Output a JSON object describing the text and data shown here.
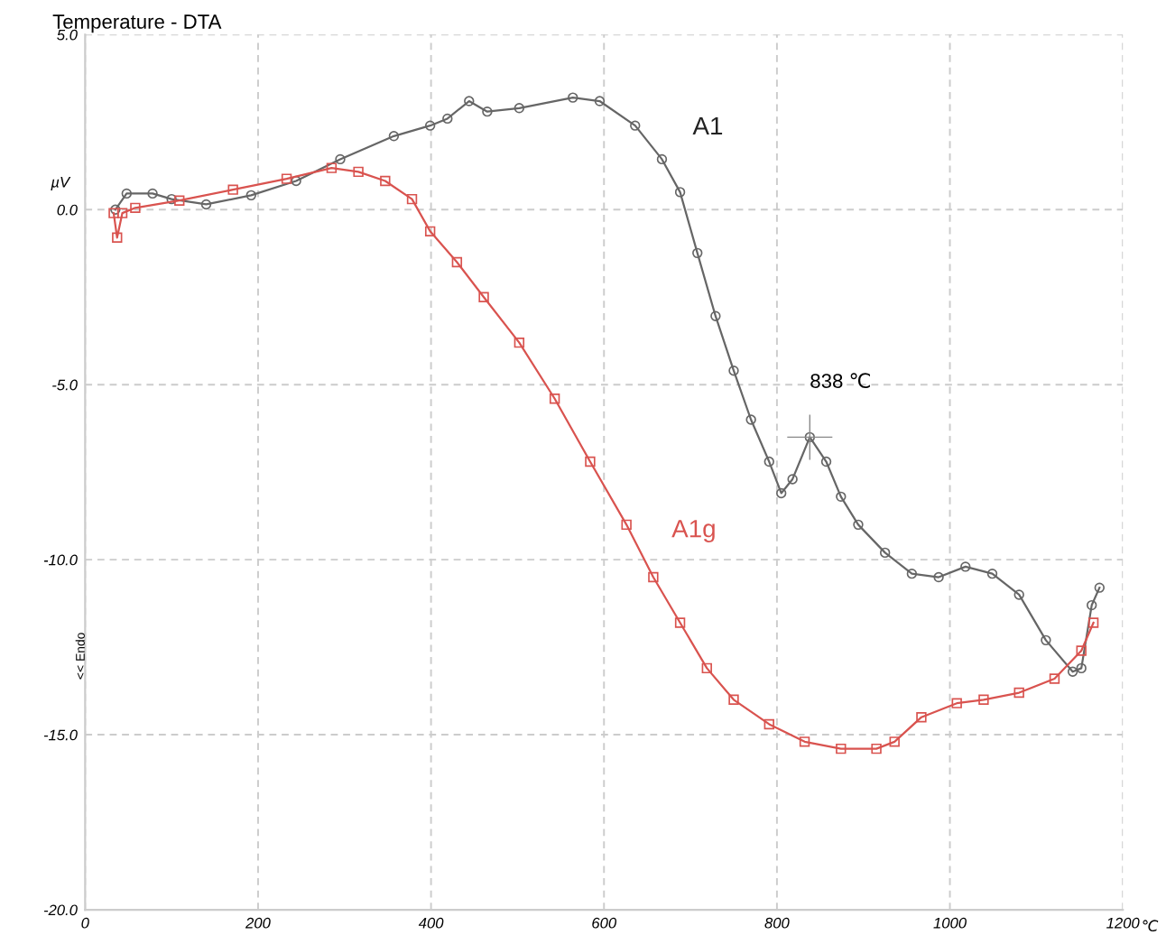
{
  "chart_data": {
    "type": "line",
    "title": "Temperature - DTA",
    "xlabel": "℃",
    "ylabel": "µV",
    "annotations": [
      {
        "text": "838 ℃",
        "x": 838,
        "y": -6.5
      },
      "<< Endo"
    ],
    "series": [
      {
        "name": "A1",
        "color": "#666666",
        "marker": "circle",
        "x": [
          35,
          48,
          78,
          100,
          140,
          192,
          244,
          295,
          357,
          399,
          419,
          444,
          465,
          502,
          564,
          595,
          636,
          667,
          688,
          708,
          729,
          750,
          770,
          791,
          805,
          818,
          838,
          857,
          874,
          894,
          925,
          956,
          987,
          1018,
          1049,
          1080,
          1111,
          1142,
          1152,
          1164,
          1173
        ],
        "values": [
          0,
          0.46,
          0.46,
          0.3,
          0.15,
          0.41,
          0.82,
          1.44,
          2.1,
          2.4,
          2.6,
          3.1,
          2.8,
          2.9,
          3.2,
          3.1,
          2.4,
          1.44,
          0.5,
          -1.24,
          -3.04,
          -4.6,
          -6.0,
          -7.2,
          -8.1,
          -7.7,
          -6.5,
          -7.2,
          -8.2,
          -9.0,
          -9.8,
          -10.4,
          -10.5,
          -10.2,
          -10.4,
          -11.0,
          -12.3,
          -13.2,
          -13.1,
          -11.3,
          -10.8
        ]
      },
      {
        "name": "A1g",
        "color": "#d9534f",
        "marker": "square",
        "x": [
          33,
          37,
          43,
          58,
          109,
          171,
          233,
          285,
          316,
          347,
          378,
          399,
          430,
          461,
          502,
          543,
          584,
          626,
          657,
          688,
          719,
          750,
          791,
          832,
          874,
          915,
          936,
          967,
          1008,
          1039,
          1080,
          1121,
          1152,
          1166
        ],
        "values": [
          -0.1,
          -0.8,
          -0.1,
          0.05,
          0.26,
          0.57,
          0.88,
          1.19,
          1.08,
          0.82,
          0.3,
          -0.62,
          -1.5,
          -2.5,
          -3.8,
          -5.4,
          -7.2,
          -9.0,
          -10.5,
          -11.8,
          -13.1,
          -14.0,
          -14.7,
          -15.2,
          -15.4,
          -15.4,
          -15.2,
          -14.5,
          -14.1,
          -14.0,
          -13.8,
          -13.4,
          -12.6,
          -11.8
        ]
      }
    ],
    "xlim": [
      0,
      1200
    ],
    "xticks": [
      0,
      200,
      400,
      600,
      800,
      1000,
      1200
    ],
    "ylim": [
      -20,
      5
    ],
    "yticks": [
      {
        "value": -20,
        "label": "-20.0"
      },
      {
        "value": -15,
        "label": "-15.0"
      },
      {
        "value": -10,
        "label": "-10.0"
      },
      {
        "value": -5,
        "label": "-5.0"
      },
      {
        "value": 0,
        "label": "0.0"
      },
      {
        "value": 5,
        "label": "5.0"
      }
    ],
    "grid": true,
    "line_style": "solid",
    "legend": false
  }
}
